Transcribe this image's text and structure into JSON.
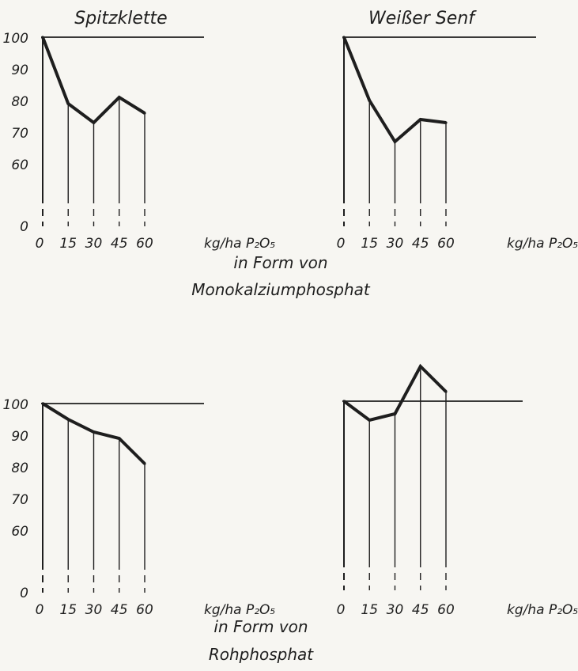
{
  "ink_color": "#1e1e1e",
  "background_color": "#f7f6f2",
  "column_titles": [
    "Spitzklette",
    "Weißer Senf"
  ],
  "captions": {
    "mono": [
      "in Form von",
      "Monokalziumphosphat"
    ],
    "roh": [
      "in Form von",
      "Rohphosphat"
    ]
  },
  "x_unit_label": "kg/ha P₂O₅",
  "chart_data": [
    {
      "type": "line",
      "title": "Spitzklette",
      "x": [
        0,
        15,
        30,
        45,
        60
      ],
      "x_tick_labels": [
        "0",
        "15",
        "30",
        "45",
        "60"
      ],
      "values": [
        100,
        79,
        73,
        81,
        76
      ],
      "y_tick_labels": [
        "100",
        "90",
        "80",
        "70",
        "60",
        "0"
      ],
      "reference_line": 100,
      "y_axis_break": true,
      "ylim": [
        0,
        100
      ]
    },
    {
      "type": "line",
      "title": "Weißer Senf",
      "x": [
        0,
        15,
        30,
        45,
        60
      ],
      "x_tick_labels": [
        "0",
        "15",
        "30",
        "45",
        "60"
      ],
      "values": [
        100,
        80,
        67,
        74,
        73
      ],
      "y_tick_labels": [],
      "reference_line": 100,
      "y_axis_break": true,
      "ylim": [
        0,
        100
      ]
    },
    {
      "type": "line",
      "title": "",
      "x": [
        0,
        15,
        30,
        45,
        60
      ],
      "x_tick_labels": [
        "0",
        "15",
        "30",
        "45",
        "60"
      ],
      "values": [
        100,
        95,
        91,
        89,
        81
      ],
      "y_tick_labels": [
        "100",
        "90",
        "80",
        "70",
        "60",
        "0"
      ],
      "reference_line": 100,
      "y_axis_break": true,
      "ylim": [
        0,
        100
      ]
    },
    {
      "type": "line",
      "title": "",
      "x": [
        0,
        15,
        30,
        45,
        60
      ],
      "x_tick_labels": [
        "0",
        "15",
        "30",
        "45",
        "60"
      ],
      "values": [
        100,
        94,
        96,
        111,
        103
      ],
      "y_tick_labels": [],
      "reference_line": 100,
      "y_axis_break": true,
      "ylim": [
        0,
        100
      ]
    }
  ]
}
